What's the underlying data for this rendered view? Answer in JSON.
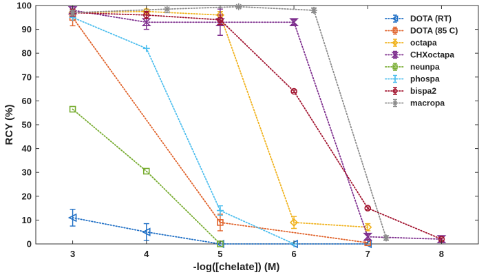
{
  "chart_data": {
    "type": "line",
    "xlabel": "-log([chelate]) (M)",
    "ylabel": "RCY (%)",
    "xlim": [
      2.5,
      8.5
    ],
    "ylim": [
      0,
      100
    ],
    "xticks": [
      3,
      4,
      5,
      6,
      7,
      8
    ],
    "yticks": [
      0,
      10,
      20,
      30,
      40,
      50,
      60,
      70,
      80,
      90,
      100
    ],
    "grid": false,
    "legend_position": "top-right",
    "series": [
      {
        "name": "DOTA (RT)",
        "color": "#1f6fc5",
        "marker": "triangle-left",
        "points": [
          {
            "x": 3,
            "y": 11,
            "err": 3.5
          },
          {
            "x": 4,
            "y": 5,
            "err": 3.5
          },
          {
            "x": 5,
            "y": 0,
            "err": 0
          },
          {
            "x": 6,
            "y": 0,
            "err": 0
          },
          {
            "x": 7,
            "y": 0,
            "err": 0
          }
        ]
      },
      {
        "name": "DOTA (85 C)",
        "color": "#e0622a",
        "marker": "square",
        "points": [
          {
            "x": 3,
            "y": 95,
            "err": 3.5
          },
          {
            "x": 5,
            "y": 9,
            "err": 3.5
          },
          {
            "x": 7,
            "y": 0.5,
            "err": 0
          }
        ]
      },
      {
        "name": "octapa",
        "color": "#f0b21d",
        "marker": "diamond",
        "points": [
          {
            "x": 3,
            "y": 97,
            "err": 1
          },
          {
            "x": 4,
            "y": 97.5,
            "err": 1
          },
          {
            "x": 5,
            "y": 96,
            "err": 1.5
          },
          {
            "x": 6,
            "y": 9,
            "err": 2.5
          },
          {
            "x": 7,
            "y": 7,
            "err": 1.5
          }
        ]
      },
      {
        "name": "CHXoctapa",
        "color": "#7e2f8e",
        "marker": "hourglass",
        "points": [
          {
            "x": 3,
            "y": 98,
            "err": 1.5
          },
          {
            "x": 4,
            "y": 93,
            "err": 3
          },
          {
            "x": 5,
            "y": 93,
            "err": 5.5
          },
          {
            "x": 6,
            "y": 93,
            "err": 1
          },
          {
            "x": 7,
            "y": 3,
            "err": 1
          },
          {
            "x": 8,
            "y": 2,
            "err": 0.5
          }
        ]
      },
      {
        "name": "neunpa",
        "color": "#77ac30",
        "marker": "square",
        "points": [
          {
            "x": 3,
            "y": 56.5,
            "err": 0
          },
          {
            "x": 4,
            "y": 30.5,
            "err": 0
          },
          {
            "x": 5,
            "y": 0,
            "err": 0
          }
        ]
      },
      {
        "name": "phospa",
        "color": "#4dbeee",
        "marker": "plus",
        "points": [
          {
            "x": 3,
            "y": 95,
            "err": 0
          },
          {
            "x": 4,
            "y": 82,
            "err": 0
          },
          {
            "x": 5,
            "y": 14,
            "err": 2
          },
          {
            "x": 6,
            "y": 0,
            "err": 0
          }
        ]
      },
      {
        "name": "bispa2",
        "color": "#a2142f",
        "marker": "circle",
        "points": [
          {
            "x": 3,
            "y": 97,
            "err": 1.5
          },
          {
            "x": 4,
            "y": 96,
            "err": 1.5
          },
          {
            "x": 5,
            "y": 94,
            "err": 2
          },
          {
            "x": 6,
            "y": 64,
            "err": 0.5
          },
          {
            "x": 7,
            "y": 15,
            "err": 0.5
          },
          {
            "x": 8,
            "y": 2,
            "err": 0.5
          }
        ]
      },
      {
        "name": "macropa",
        "color": "#8c8c8c",
        "marker": "star",
        "points": [
          {
            "x": 3,
            "y": 97,
            "err": 1
          },
          {
            "x": 4.28,
            "y": 98.5,
            "err": 1.5
          },
          {
            "x": 5.25,
            "y": 99.5,
            "err": 0.5
          },
          {
            "x": 6.27,
            "y": 98,
            "err": 1
          },
          {
            "x": 7.25,
            "y": 2.5,
            "err": 1
          }
        ]
      }
    ]
  }
}
